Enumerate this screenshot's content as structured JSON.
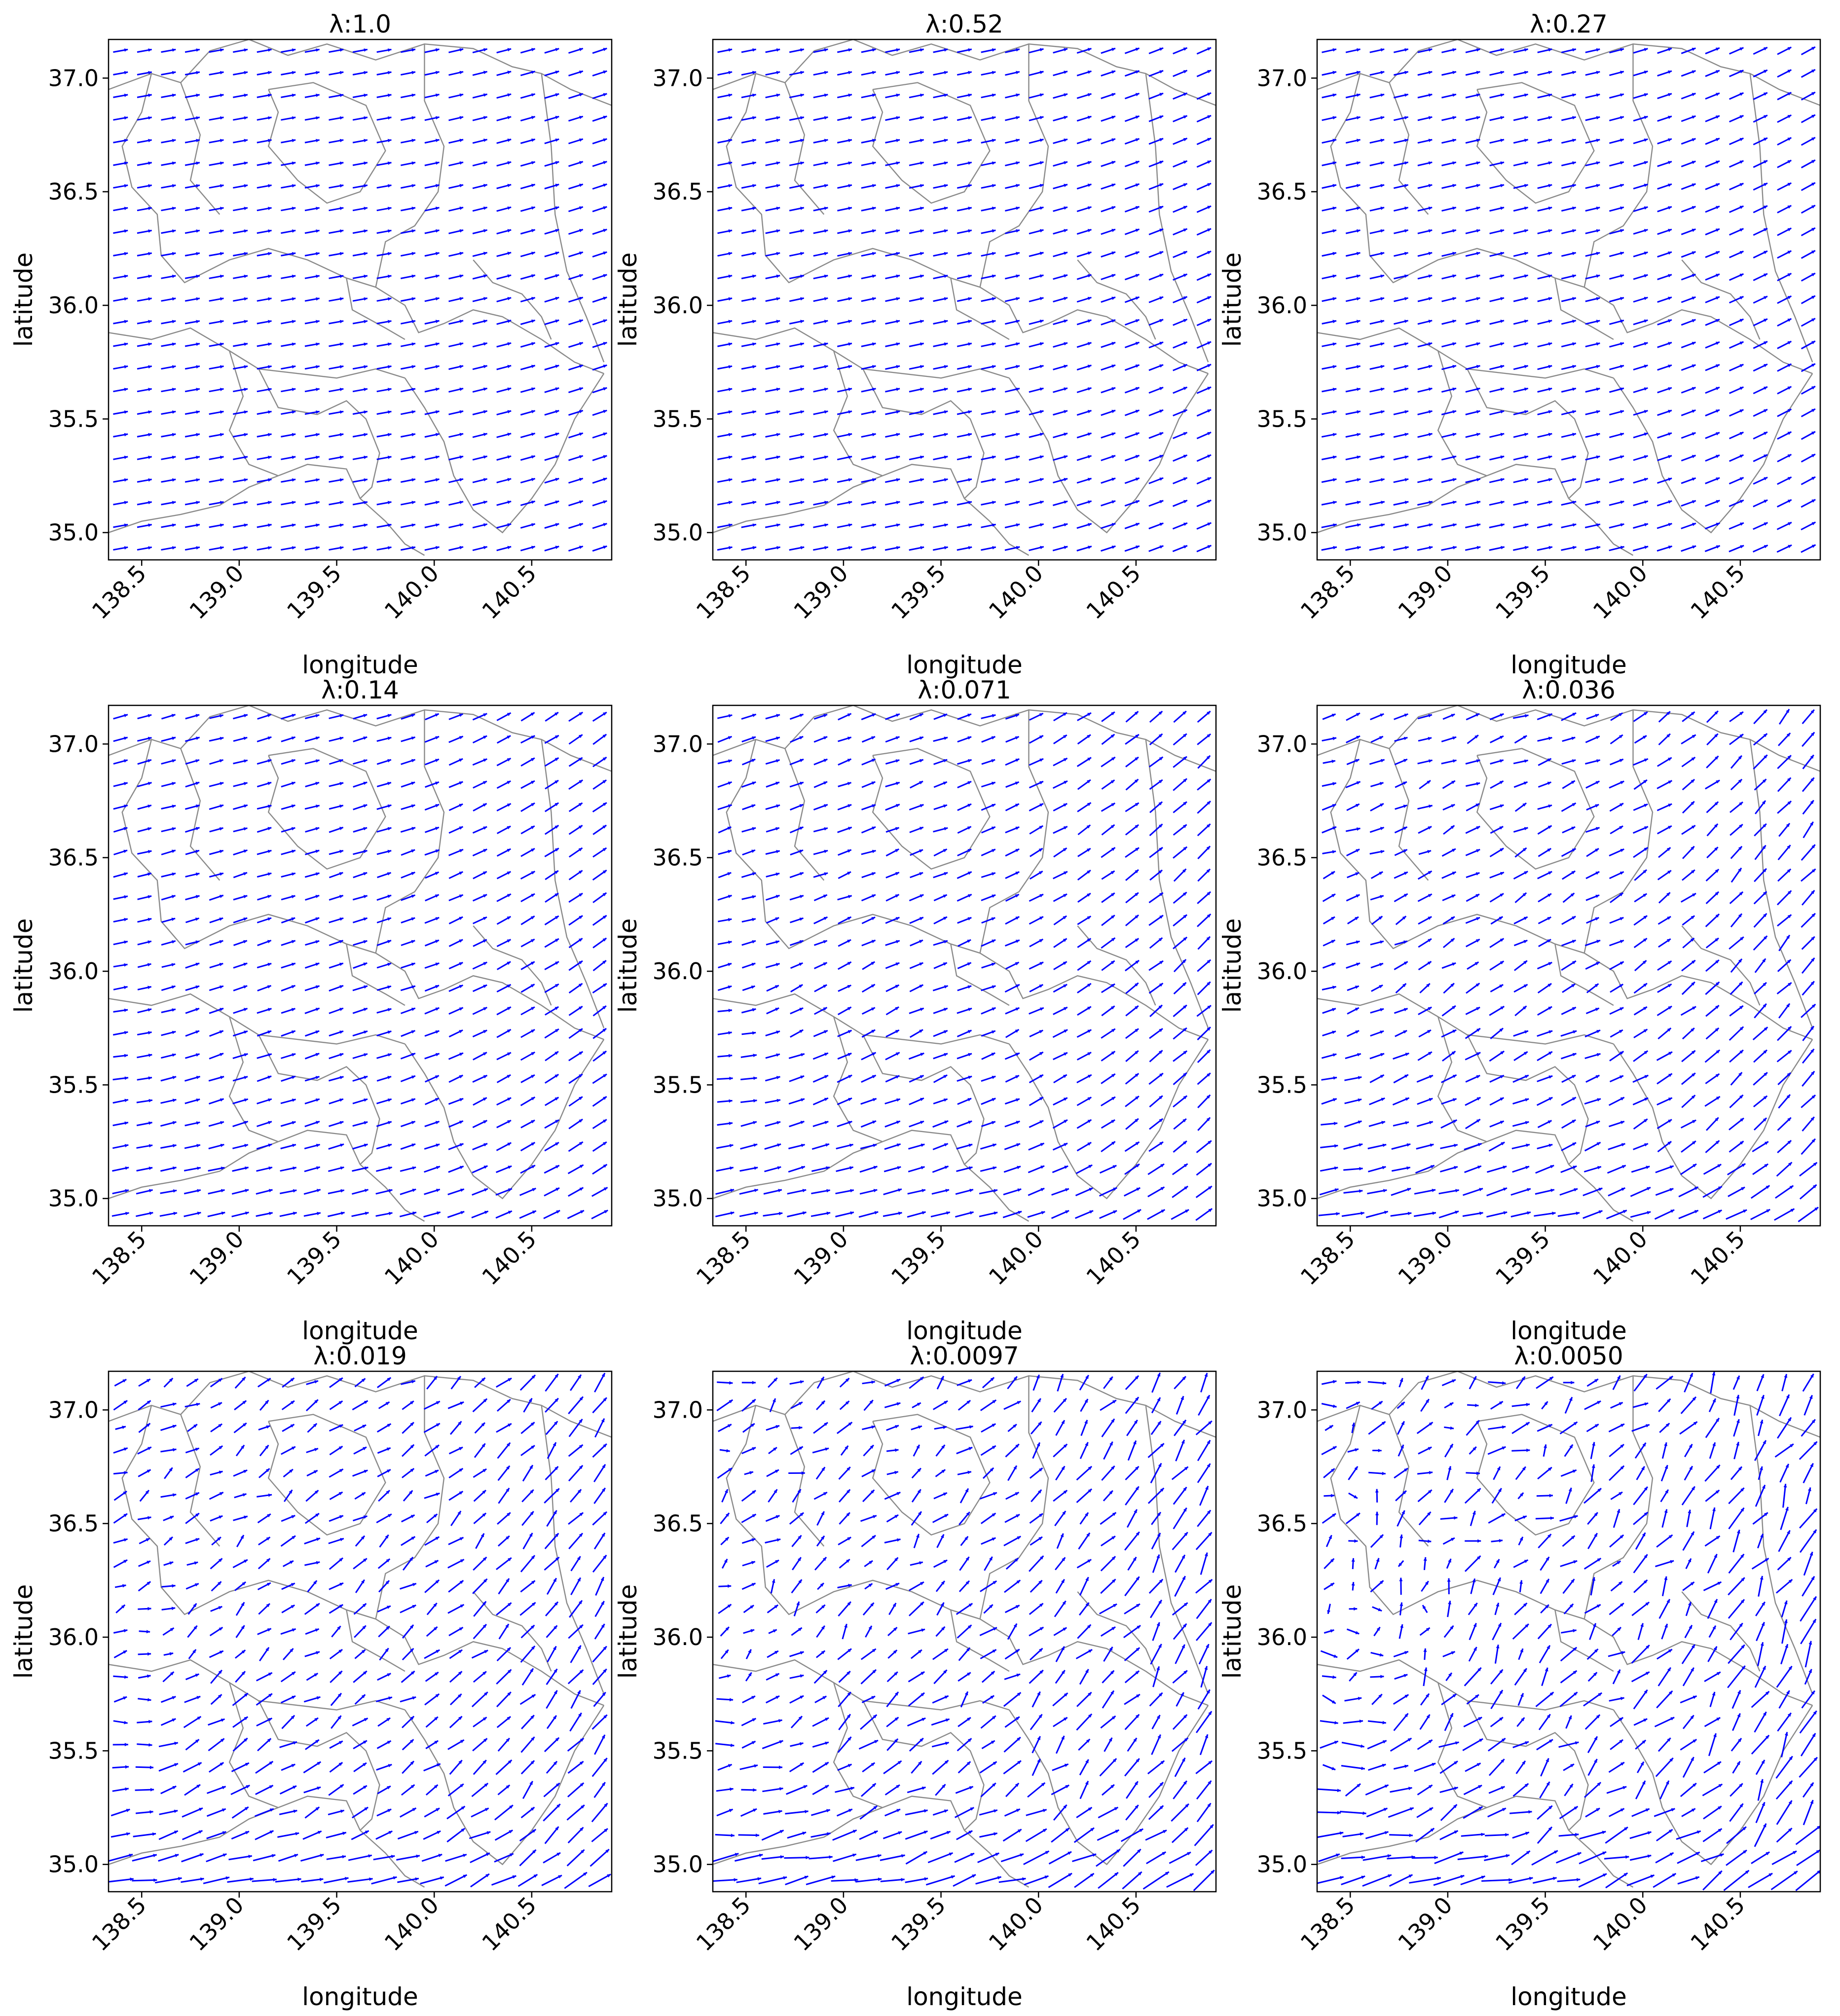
{
  "colors": {
    "arrow": "#0000ff",
    "boundary": "#8a8a8a",
    "frame": "#000000"
  },
  "chart_data": [
    {
      "type": "quiver",
      "title": "λ:1.0",
      "xlabel": "longitude",
      "ylabel": "latitude",
      "xlim": [
        138.33,
        140.91
      ],
      "ylim": [
        34.88,
        37.17
      ],
      "xticks": [
        "138.5",
        "139.0",
        "139.5",
        "140.0",
        "140.5"
      ],
      "yticks": [
        "35.0",
        "35.5",
        "36.0",
        "36.5",
        "37.0"
      ],
      "field": {
        "base_u": 1.0,
        "base_v": 0.18,
        "east_v": 0.35,
        "vortex_strength": 0.0,
        "disorder": 0.0
      }
    },
    {
      "type": "quiver",
      "title": "λ:0.52",
      "xlabel": "longitude",
      "ylabel": "latitude",
      "xlim": [
        138.33,
        140.91
      ],
      "ylim": [
        34.88,
        37.17
      ],
      "xticks": [
        "138.5",
        "139.0",
        "139.5",
        "140.0",
        "140.5"
      ],
      "yticks": [
        "35.0",
        "35.5",
        "36.0",
        "36.5",
        "37.0"
      ],
      "field": {
        "base_u": 1.0,
        "base_v": 0.2,
        "east_v": 0.55,
        "vortex_strength": 0.05,
        "disorder": 0.0
      }
    },
    {
      "type": "quiver",
      "title": "λ:0.27",
      "xlabel": "longitude",
      "ylabel": "latitude",
      "xlim": [
        138.33,
        140.91
      ],
      "ylim": [
        34.88,
        37.17
      ],
      "xticks": [
        "138.5",
        "139.0",
        "139.5",
        "140.0",
        "140.5"
      ],
      "yticks": [
        "35.0",
        "35.5",
        "36.0",
        "36.5",
        "37.0"
      ],
      "field": {
        "base_u": 1.0,
        "base_v": 0.22,
        "east_v": 0.75,
        "vortex_strength": 0.1,
        "disorder": 0.0
      }
    },
    {
      "type": "quiver",
      "title": "λ:0.14",
      "xlabel": "longitude",
      "ylabel": "latitude",
      "xlim": [
        138.33,
        140.91
      ],
      "ylim": [
        34.88,
        37.17
      ],
      "xticks": [
        "138.5",
        "139.0",
        "139.5",
        "140.0",
        "140.5"
      ],
      "yticks": [
        "35.0",
        "35.5",
        "36.0",
        "36.5",
        "37.0"
      ],
      "field": {
        "base_u": 1.0,
        "base_v": 0.25,
        "east_v": 1.0,
        "vortex_strength": 0.35,
        "disorder": 0.05
      }
    },
    {
      "type": "quiver",
      "title": "λ:0.071",
      "xlabel": "longitude",
      "ylabel": "latitude",
      "xlim": [
        138.33,
        140.91
      ],
      "ylim": [
        34.88,
        37.17
      ],
      "xticks": [
        "138.5",
        "139.0",
        "139.5",
        "140.0",
        "140.5"
      ],
      "yticks": [
        "35.0",
        "35.5",
        "36.0",
        "36.5",
        "37.0"
      ],
      "field": {
        "base_u": 1.0,
        "base_v": 0.3,
        "east_v": 1.3,
        "vortex_strength": 0.6,
        "disorder": 0.1
      }
    },
    {
      "type": "quiver",
      "title": "λ:0.036",
      "xlabel": "longitude",
      "ylabel": "latitude",
      "xlim": [
        138.33,
        140.91
      ],
      "ylim": [
        34.88,
        37.17
      ],
      "xticks": [
        "138.5",
        "139.0",
        "139.5",
        "140.0",
        "140.5"
      ],
      "yticks": [
        "35.0",
        "35.5",
        "36.0",
        "36.5",
        "37.0"
      ],
      "field": {
        "base_u": 1.0,
        "base_v": 0.35,
        "east_v": 1.7,
        "vortex_strength": 0.9,
        "disorder": 0.2
      }
    },
    {
      "type": "quiver",
      "title": "λ:0.019",
      "xlabel": "longitude",
      "ylabel": "latitude",
      "xlim": [
        138.33,
        140.91
      ],
      "ylim": [
        34.88,
        37.17
      ],
      "xticks": [
        "138.5",
        "139.0",
        "139.5",
        "140.0",
        "140.5"
      ],
      "yticks": [
        "35.0",
        "35.5",
        "36.0",
        "36.5",
        "37.0"
      ],
      "field": {
        "base_u": 1.0,
        "base_v": 0.4,
        "east_v": 2.0,
        "vortex_strength": 1.3,
        "disorder": 0.35
      }
    },
    {
      "type": "quiver",
      "title": "λ:0.0097",
      "xlabel": "longitude",
      "ylabel": "latitude",
      "xlim": [
        138.33,
        140.91
      ],
      "ylim": [
        34.88,
        37.17
      ],
      "xticks": [
        "138.5",
        "139.0",
        "139.5",
        "140.0",
        "140.5"
      ],
      "yticks": [
        "35.0",
        "35.5",
        "36.0",
        "36.5",
        "37.0"
      ],
      "field": {
        "base_u": 1.0,
        "base_v": 0.45,
        "east_v": 2.3,
        "vortex_strength": 1.6,
        "disorder": 0.5
      }
    },
    {
      "type": "quiver",
      "title": "λ:0.0050",
      "xlabel": "longitude",
      "ylabel": "latitude",
      "xlim": [
        138.33,
        140.91
      ],
      "ylim": [
        34.88,
        37.17
      ],
      "xticks": [
        "138.5",
        "139.0",
        "139.5",
        "140.0",
        "140.5"
      ],
      "yticks": [
        "35.0",
        "35.5",
        "36.0",
        "36.5",
        "37.0"
      ],
      "field": {
        "base_u": 1.0,
        "base_v": 0.5,
        "east_v": 2.6,
        "vortex_strength": 1.9,
        "disorder": 0.7
      }
    }
  ]
}
